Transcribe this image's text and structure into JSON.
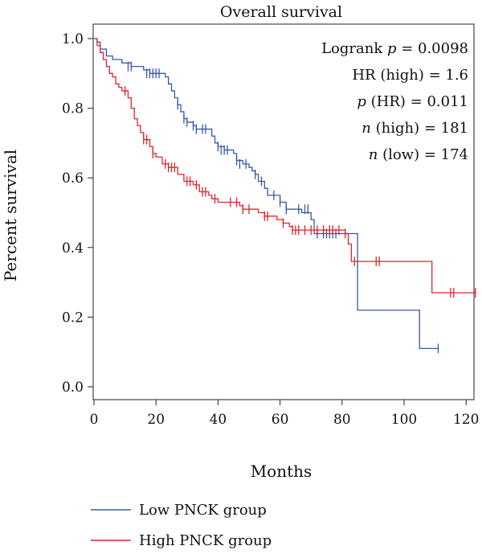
{
  "chart_data": {
    "type": "line",
    "title": "Overall survival",
    "xlabel": "Months",
    "ylabel": "Percent survival",
    "xlim": [
      0,
      123
    ],
    "ylim": [
      0.0,
      1.0
    ],
    "x_ticks": [
      "0",
      "20",
      "40",
      "60",
      "80",
      "100",
      "120"
    ],
    "y_ticks": [
      "0.0",
      "0.2",
      "0.4",
      "0.6",
      "0.8",
      "1.0"
    ],
    "stats": {
      "logrank": {
        "prefix": "Logrank ",
        "var": "p",
        "suffix": " = 0.0098"
      },
      "hr": {
        "prefix": "HR (high) = 1.6",
        "var": "",
        "suffix": ""
      },
      "p_hr": {
        "prefix": "",
        "var": "p",
        "suffix": " (HR) = 0.011"
      },
      "n_high": {
        "prefix": "",
        "var": "n",
        "suffix": " (high) = 181"
      },
      "n_low": {
        "prefix": "",
        "var": "n",
        "suffix": " (low) = 174"
      }
    },
    "legend": {
      "placement": "bottom-left"
    },
    "series": [
      {
        "name": "Low PNCK group",
        "color": "#3a58a8",
        "steps": [
          [
            0,
            1.0
          ],
          [
            1,
            0.99
          ],
          [
            2,
            0.97
          ],
          [
            4,
            0.95
          ],
          [
            6,
            0.94
          ],
          [
            9,
            0.93
          ],
          [
            12,
            0.92
          ],
          [
            16,
            0.91
          ],
          [
            18,
            0.9
          ],
          [
            23,
            0.89
          ],
          [
            24,
            0.87
          ],
          [
            25,
            0.85
          ],
          [
            26,
            0.83
          ],
          [
            27,
            0.81
          ],
          [
            28,
            0.79
          ],
          [
            29,
            0.77
          ],
          [
            30,
            0.76
          ],
          [
            32,
            0.75
          ],
          [
            33,
            0.74
          ],
          [
            38,
            0.72
          ],
          [
            39,
            0.7
          ],
          [
            40,
            0.69
          ],
          [
            42,
            0.68
          ],
          [
            45,
            0.67
          ],
          [
            46,
            0.65
          ],
          [
            48,
            0.64
          ],
          [
            50,
            0.63
          ],
          [
            51,
            0.62
          ],
          [
            52,
            0.61
          ],
          [
            53,
            0.59
          ],
          [
            55,
            0.57
          ],
          [
            56,
            0.55
          ],
          [
            60,
            0.53
          ],
          [
            62,
            0.51
          ],
          [
            67,
            0.5
          ],
          [
            70,
            0.48
          ],
          [
            71,
            0.44
          ],
          [
            85,
            0.22
          ],
          [
            105,
            0.11
          ]
        ],
        "end_x": 111,
        "censored": [
          [
            11,
            0.92
          ],
          [
            12,
            0.92
          ],
          [
            17,
            0.9
          ],
          [
            18,
            0.9
          ],
          [
            19,
            0.9
          ],
          [
            20,
            0.9
          ],
          [
            21,
            0.9
          ],
          [
            27,
            0.81
          ],
          [
            29,
            0.77
          ],
          [
            30,
            0.76
          ],
          [
            32,
            0.75
          ],
          [
            33,
            0.74
          ],
          [
            35,
            0.74
          ],
          [
            36,
            0.74
          ],
          [
            40,
            0.69
          ],
          [
            41,
            0.68
          ],
          [
            42,
            0.68
          ],
          [
            43,
            0.68
          ],
          [
            46,
            0.65
          ],
          [
            47,
            0.64
          ],
          [
            49,
            0.64
          ],
          [
            52,
            0.61
          ],
          [
            54,
            0.59
          ],
          [
            58,
            0.55
          ],
          [
            60,
            0.53
          ],
          [
            62,
            0.51
          ],
          [
            66,
            0.51
          ],
          [
            68,
            0.51
          ],
          [
            69,
            0.51
          ],
          [
            72,
            0.44
          ],
          [
            74,
            0.44
          ],
          [
            75,
            0.44
          ],
          [
            76,
            0.44
          ],
          [
            77,
            0.44
          ],
          [
            78,
            0.44
          ],
          [
            111,
            0.11
          ]
        ]
      },
      {
        "name": "High PNCK group",
        "color": "#e0242b",
        "steps": [
          [
            0,
            1.0
          ],
          [
            1,
            0.98
          ],
          [
            2,
            0.96
          ],
          [
            3,
            0.94
          ],
          [
            4,
            0.92
          ],
          [
            5,
            0.9
          ],
          [
            6,
            0.89
          ],
          [
            7,
            0.87
          ],
          [
            8,
            0.86
          ],
          [
            9,
            0.85
          ],
          [
            11,
            0.83
          ],
          [
            12,
            0.8
          ],
          [
            13,
            0.77
          ],
          [
            14,
            0.75
          ],
          [
            15,
            0.73
          ],
          [
            16,
            0.71
          ],
          [
            18,
            0.69
          ],
          [
            19,
            0.67
          ],
          [
            20,
            0.66
          ],
          [
            22,
            0.64
          ],
          [
            24,
            0.63
          ],
          [
            27,
            0.61
          ],
          [
            29,
            0.59
          ],
          [
            32,
            0.58
          ],
          [
            34,
            0.56
          ],
          [
            37,
            0.55
          ],
          [
            38,
            0.54
          ],
          [
            40,
            0.53
          ],
          [
            47,
            0.52
          ],
          [
            48,
            0.51
          ],
          [
            53,
            0.5
          ],
          [
            55,
            0.49
          ],
          [
            59,
            0.48
          ],
          [
            61,
            0.47
          ],
          [
            63,
            0.46
          ],
          [
            64,
            0.45
          ],
          [
            81,
            0.44
          ],
          [
            82,
            0.41
          ],
          [
            83,
            0.36
          ],
          [
            109,
            0.27
          ]
        ],
        "end_x": 123,
        "censored": [
          [
            10,
            0.85
          ],
          [
            16,
            0.71
          ],
          [
            17,
            0.71
          ],
          [
            19,
            0.67
          ],
          [
            23,
            0.64
          ],
          [
            24,
            0.63
          ],
          [
            25,
            0.63
          ],
          [
            26,
            0.63
          ],
          [
            30,
            0.59
          ],
          [
            31,
            0.59
          ],
          [
            33,
            0.58
          ],
          [
            35,
            0.56
          ],
          [
            36,
            0.56
          ],
          [
            39,
            0.54
          ],
          [
            44,
            0.53
          ],
          [
            46,
            0.53
          ],
          [
            48,
            0.51
          ],
          [
            50,
            0.51
          ],
          [
            55,
            0.49
          ],
          [
            56,
            0.49
          ],
          [
            61,
            0.47
          ],
          [
            64,
            0.45
          ],
          [
            65,
            0.45
          ],
          [
            66,
            0.45
          ],
          [
            68,
            0.45
          ],
          [
            70,
            0.45
          ],
          [
            72,
            0.45
          ],
          [
            74,
            0.45
          ],
          [
            76,
            0.45
          ],
          [
            77,
            0.45
          ],
          [
            79,
            0.45
          ],
          [
            81,
            0.44
          ],
          [
            84,
            0.36
          ],
          [
            91,
            0.36
          ],
          [
            92,
            0.36
          ],
          [
            115,
            0.27
          ],
          [
            116,
            0.27
          ],
          [
            123,
            0.27
          ]
        ]
      }
    ]
  }
}
